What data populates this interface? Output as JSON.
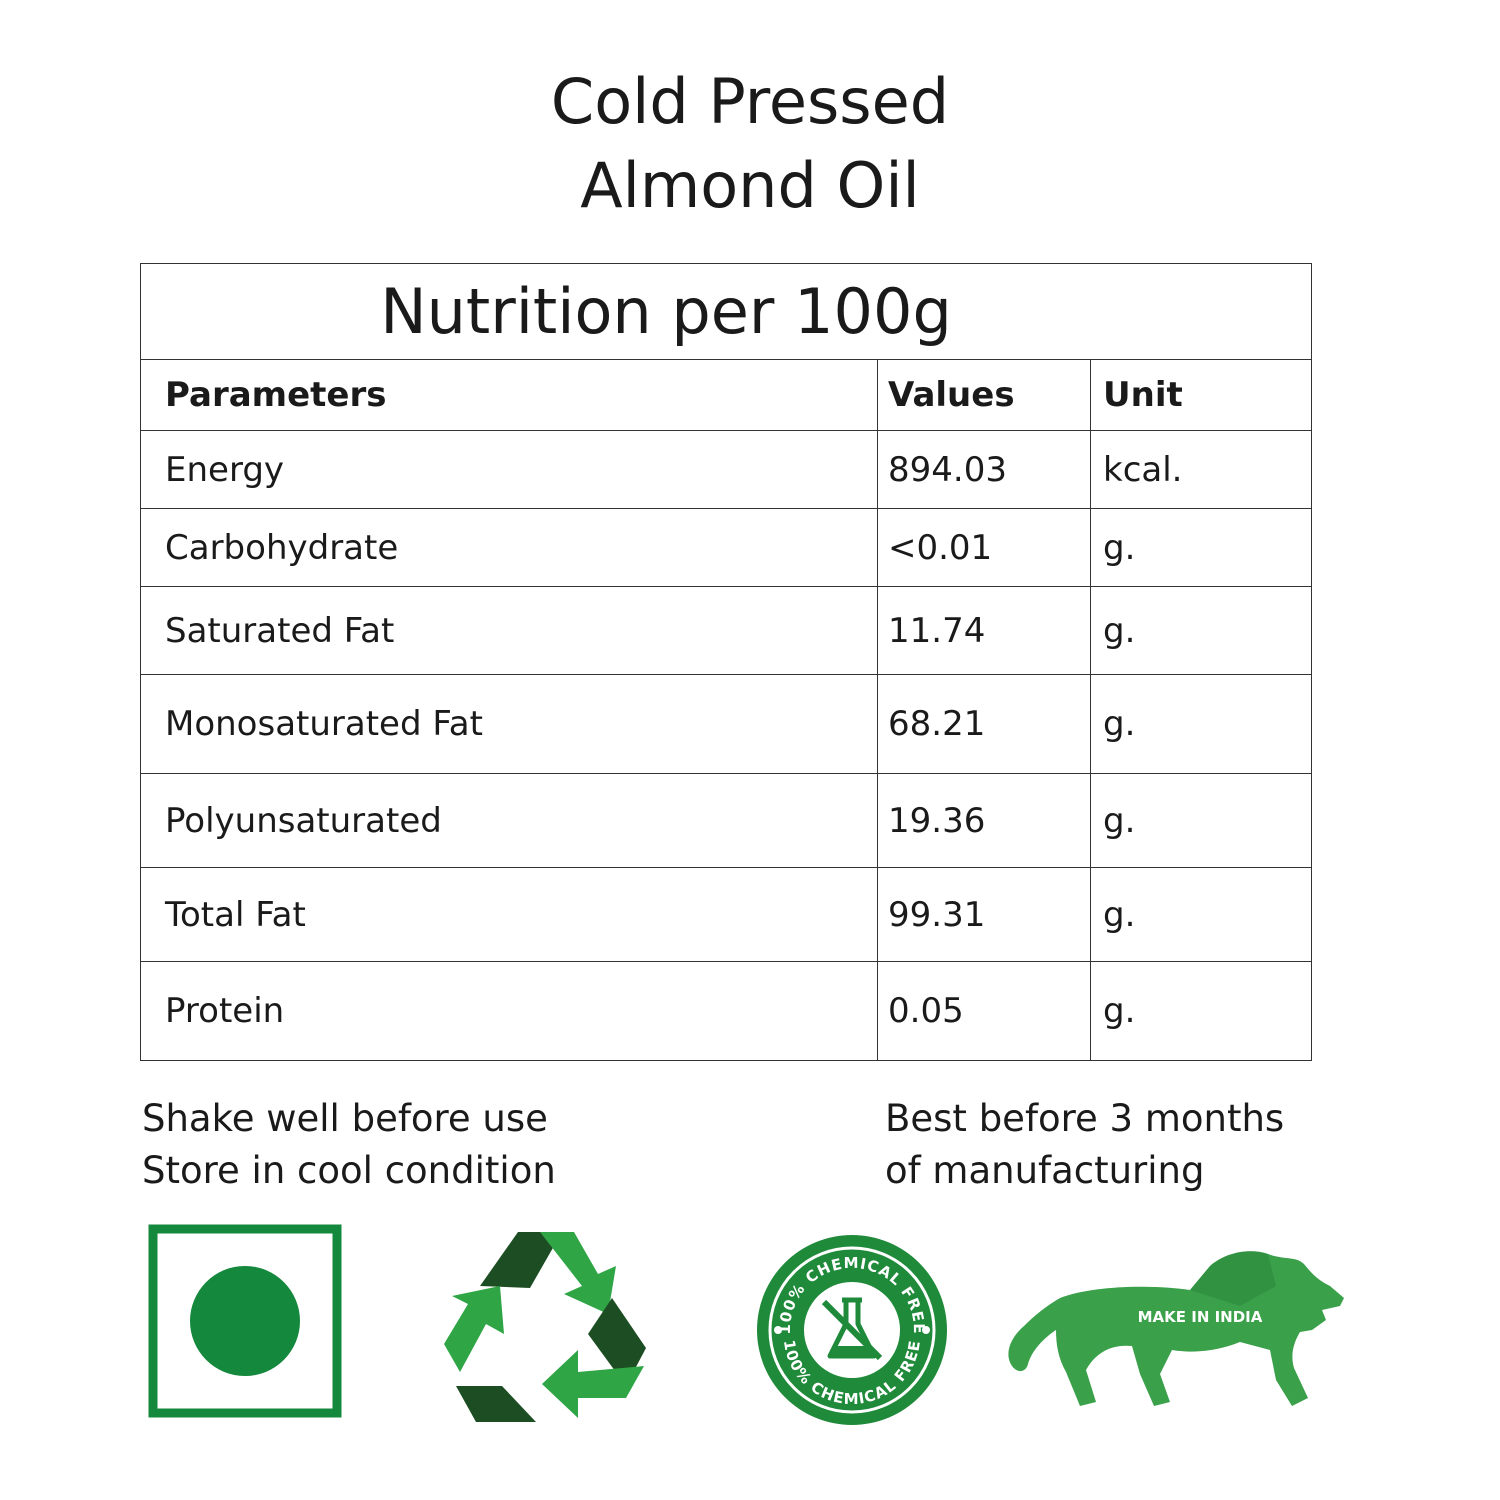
{
  "header": {
    "title_line1": "Cold Pressed",
    "title_line2": "Almond Oil"
  },
  "nutrition": {
    "caption": "Nutrition per 100g",
    "headers": {
      "parameter": "Parameters",
      "value": "Values",
      "unit": "Unit"
    },
    "rows": [
      {
        "parameter": "Energy",
        "value": "894.03",
        "unit": "kcal."
      },
      {
        "parameter": "Carbohydrate",
        "value": "<0.01",
        "unit": "g."
      },
      {
        "parameter": "Saturated Fat",
        "value": "11.74",
        "unit": "g."
      },
      {
        "parameter": "Monosaturated Fat",
        "value": "68.21",
        "unit": "g."
      },
      {
        "parameter": "Polyunsaturated",
        "value": "19.36",
        "unit": "g."
      },
      {
        "parameter": "Total Fat",
        "value": "99.31",
        "unit": "g."
      },
      {
        "parameter": "Protein",
        "value": "0.05",
        "unit": "g."
      }
    ]
  },
  "notes": {
    "left_line1": "Shake well before use",
    "left_line2": "Store in cool condition",
    "right_line1": "Best before 3 months",
    "right_line2": "of manufacturing"
  },
  "badges": {
    "veg_mark_icon": "veg-symbol-icon",
    "recycle_icon": "recycle-icon",
    "chemical_free_top": "100% CHEMICAL FREE",
    "chemical_free_bottom": "100% CHEMICAL FREE",
    "make_in_india": "MAKE IN INDIA"
  },
  "colors": {
    "veg_green": "#14883c",
    "recycle_dark": "#1d4d22",
    "recycle_light": "#2fa545",
    "badge_green": "#1f8a3a",
    "lion_green": "#3aa04a"
  }
}
